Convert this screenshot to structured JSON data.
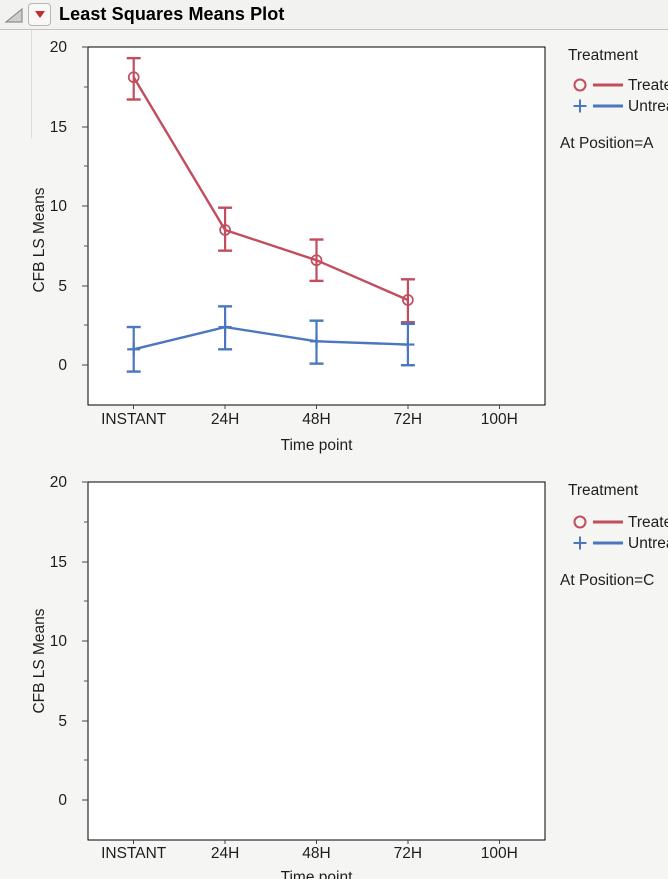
{
  "header": {
    "title": "Least Squares Means Plot"
  },
  "colors": {
    "treated": "#C14D5E",
    "untreated": "#4B77BE",
    "menu_triangle": "#C42B2B",
    "axis_text": "#1e1e1e",
    "frame": "#000000",
    "plot_background": "#ffffff"
  },
  "chart_data": [
    {
      "type": "line",
      "title": "",
      "ylabel": "CFB LS Means",
      "xlabel": "Time point",
      "categories": [
        "INSTANT",
        "24H",
        "48H",
        "72H",
        "100H"
      ],
      "yticks": [
        0,
        5,
        10,
        15,
        20
      ],
      "minor_yticks": [
        2.5,
        7.5,
        12.5,
        17.5
      ],
      "ylim": [
        -2.5,
        20
      ],
      "grid": false,
      "legend": {
        "title": "Treatment",
        "position": "right",
        "items": [
          {
            "label": "Treated",
            "marker": "circle",
            "color": "#C14D5E"
          },
          {
            "label": "Untreated",
            "marker": "plus",
            "color": "#4B77BE"
          }
        ],
        "note": "At Position=A"
      },
      "series": [
        {
          "name": "Treated",
          "color": "#C14D5E",
          "marker": "circle",
          "x": [
            "INSTANT",
            "24H",
            "48H",
            "72H"
          ],
          "means": [
            18.1,
            8.5,
            6.6,
            4.1
          ],
          "ci_low": [
            16.7,
            7.2,
            5.3,
            2.7
          ],
          "ci_high": [
            19.3,
            9.9,
            7.9,
            5.4
          ]
        },
        {
          "name": "Untreated",
          "color": "#4B77BE",
          "marker": "plus",
          "x": [
            "INSTANT",
            "24H",
            "48H",
            "72H"
          ],
          "means": [
            1.0,
            2.4,
            1.5,
            1.3
          ],
          "ci_low": [
            -0.4,
            1.0,
            0.1,
            0.0
          ],
          "ci_high": [
            2.4,
            3.7,
            2.8,
            2.6
          ]
        }
      ]
    },
    {
      "type": "line",
      "title": "",
      "ylabel": "CFB LS Means",
      "xlabel": "Time point",
      "categories": [
        "INSTANT",
        "24H",
        "48H",
        "72H",
        "100H"
      ],
      "yticks": [
        0,
        5,
        10,
        15,
        20
      ],
      "minor_yticks": [
        2.5,
        7.5,
        12.5,
        17.5
      ],
      "ylim": [
        -2.5,
        20
      ],
      "grid": false,
      "legend": {
        "title": "Treatment",
        "position": "right",
        "items": [
          {
            "label": "Treated",
            "marker": "circle",
            "color": "#C14D5E"
          },
          {
            "label": "Untreated",
            "marker": "plus",
            "color": "#4B77BE"
          }
        ],
        "note": "At Position=C"
      },
      "series": []
    }
  ]
}
